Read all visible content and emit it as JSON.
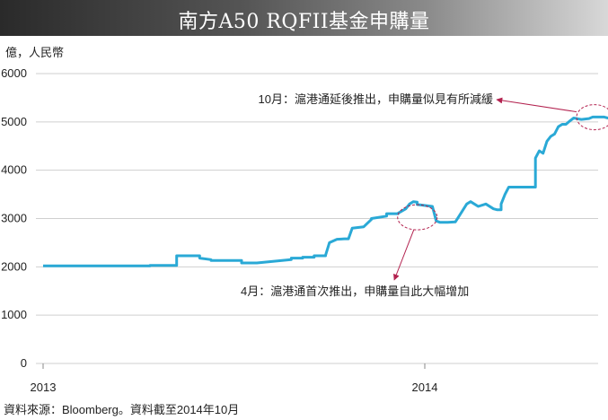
{
  "header": {
    "title": "南方A50 RQFII基金申購量"
  },
  "source_note": "資料來源：Bloomberg。資料截至2014年10月",
  "chart_data": {
    "type": "line",
    "title": "南方A50 RQFII基金申購量",
    "ylabel": "億，人民幣",
    "xlabel": "",
    "ylim": [
      0,
      6000
    ],
    "yticks": [
      "0",
      "1000",
      "2000",
      "3000",
      "4000",
      "5000",
      "6000"
    ],
    "xticks": [
      {
        "label": "2013",
        "x": 2013.0
      },
      {
        "label": "2014",
        "x": 2014.0
      }
    ],
    "grid": true,
    "line_color": "#2aa9d6",
    "annotation_color": "#b3224f",
    "series": [
      {
        "name": "",
        "x": [
          2013.0,
          2013.28,
          2013.28,
          2013.35,
          2013.35,
          2013.37,
          2013.37,
          2013.41,
          2013.41,
          2013.44,
          2013.44,
          2013.52,
          2013.52,
          2013.53,
          2013.56,
          2013.65,
          2013.65,
          2013.68,
          2013.68,
          2013.71,
          2013.71,
          2013.74,
          2013.74,
          2013.75,
          2013.77,
          2013.79,
          2013.8,
          2013.81,
          2013.81,
          2013.84,
          2013.84,
          2013.86,
          2013.86,
          2013.9,
          2013.9,
          2013.93,
          2013.93,
          2013.95,
          2013.96,
          2013.97,
          2013.98,
          2013.98,
          2014.02,
          2014.03,
          2014.04,
          2014.06,
          2014.08,
          2014.09,
          2014.11,
          2014.12,
          2014.14,
          2014.16,
          2014.18,
          2014.19,
          2014.2,
          2014.2,
          2014.21,
          2014.22,
          2014.29,
          2014.29,
          2014.3,
          2014.31,
          2014.32,
          2014.33,
          2014.34,
          2014.35,
          2014.36,
          2014.37,
          2014.38,
          2014.39,
          2014.41,
          2014.42,
          2014.43,
          2014.44,
          2014.47,
          2014.48,
          2014.5,
          2014.52,
          2014.54,
          2014.55,
          2014.57
        ],
        "y": [
          2020,
          2020,
          2030,
          2030,
          2230,
          2230,
          2230,
          2230,
          2180,
          2150,
          2130,
          2130,
          2080,
          2080,
          2080,
          2150,
          2180,
          2180,
          2200,
          2200,
          2230,
          2230,
          2240,
          2500,
          2570,
          2580,
          2580,
          2800,
          2800,
          2830,
          2830,
          2980,
          3000,
          3050,
          3100,
          3100,
          3110,
          3200,
          3300,
          3350,
          3340,
          3290,
          3250,
          2950,
          2920,
          2920,
          2930,
          3050,
          3300,
          3350,
          3250,
          3300,
          3200,
          3180,
          3180,
          3300,
          3500,
          3650,
          3650,
          4250,
          4400,
          4350,
          4600,
          4700,
          4750,
          4900,
          4950,
          4950,
          5020,
          5080,
          5050,
          5060,
          5070,
          5100,
          5100,
          5080,
          5080,
          5060,
          5050,
          5040,
          5040
        ]
      }
    ],
    "annotations": [
      {
        "text": "10月：滬港通延後推出，申購量似見有所減緩",
        "x": 2014.44,
        "y": 5060
      },
      {
        "text": "4月：滬港通首次推出，申購量自此大幅增加",
        "x": 2013.99,
        "y": 2970
      }
    ]
  }
}
